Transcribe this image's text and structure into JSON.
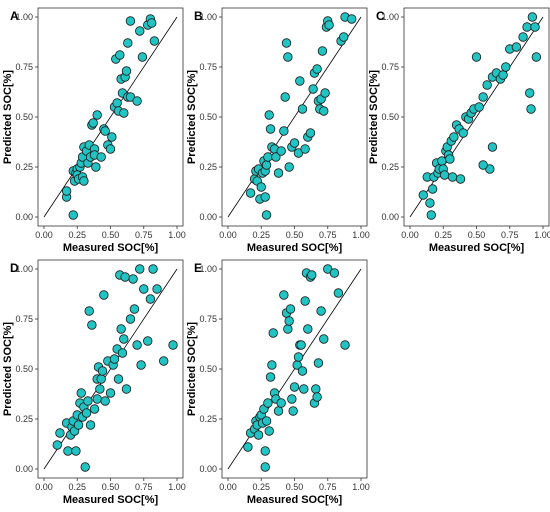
{
  "colors": {
    "point_fill": "#22C3C3",
    "point_stroke": "#1a1a1a",
    "line": "#000000"
  },
  "chart_data": [
    {
      "type": "scatter",
      "panel": "A",
      "xlabel": "Measured SOC[%]",
      "ylabel": "Predicted SOC[%]",
      "xlim": [
        0,
        1
      ],
      "ylim": [
        0,
        1
      ],
      "xticks": [
        "0.00",
        "0.25",
        "0.50",
        "0.75",
        "1.00"
      ],
      "yticks": [
        "0.00",
        "0.25",
        "0.50",
        "0.75",
        "1.00"
      ],
      "reference_line": "y = x",
      "grid": false,
      "points": [
        [
          0.17,
          0.1
        ],
        [
          0.17,
          0.13
        ],
        [
          0.22,
          0.23
        ],
        [
          0.23,
          0.18
        ],
        [
          0.24,
          0.22
        ],
        [
          0.25,
          0.24
        ],
        [
          0.25,
          0.21
        ],
        [
          0.26,
          0.19
        ],
        [
          0.27,
          0.25
        ],
        [
          0.28,
          0.27
        ],
        [
          0.29,
          0.2
        ],
        [
          0.29,
          0.3
        ],
        [
          0.3,
          0.18
        ],
        [
          0.3,
          0.35
        ],
        [
          0.32,
          0.33
        ],
        [
          0.33,
          0.27
        ],
        [
          0.34,
          0.36
        ],
        [
          0.35,
          0.3
        ],
        [
          0.36,
          0.46
        ],
        [
          0.37,
          0.47
        ],
        [
          0.38,
          0.34
        ],
        [
          0.38,
          0.31
        ],
        [
          0.39,
          0.25
        ],
        [
          0.4,
          0.51
        ],
        [
          0.43,
          0.3
        ],
        [
          0.45,
          0.44
        ],
        [
          0.46,
          0.43
        ],
        [
          0.48,
          0.36
        ],
        [
          0.5,
          0.34
        ],
        [
          0.51,
          0.4
        ],
        [
          0.53,
          0.55
        ],
        [
          0.54,
          0.79
        ],
        [
          0.55,
          0.57
        ],
        [
          0.56,
          0.53
        ],
        [
          0.57,
          0.81
        ],
        [
          0.58,
          0.69
        ],
        [
          0.59,
          0.62
        ],
        [
          0.6,
          0.52
        ],
        [
          0.61,
          0.7
        ],
        [
          0.62,
          0.73
        ],
        [
          0.63,
          0.6
        ],
        [
          0.63,
          0.87
        ],
        [
          0.65,
          0.98
        ],
        [
          0.65,
          0.6
        ],
        [
          0.7,
          0.58
        ],
        [
          0.72,
          0.93
        ],
        [
          0.74,
          0.8
        ],
        [
          0.78,
          0.96
        ],
        [
          0.8,
          0.99
        ],
        [
          0.81,
          0.97
        ],
        [
          0.83,
          0.88
        ],
        [
          0.22,
          0.01
        ]
      ]
    },
    {
      "type": "scatter",
      "panel": "B",
      "xlabel": "Measured SOC[%]",
      "ylabel": "Predicted SOC[%]",
      "xlim": [
        0,
        1
      ],
      "ylim": [
        0,
        1
      ],
      "xticks": [
        "0.00",
        "0.25",
        "0.50",
        "0.75",
        "1.00"
      ],
      "yticks": [
        "0.00",
        "0.25",
        "0.50",
        "0.75",
        "1.00"
      ],
      "reference_line": "y = x",
      "grid": false,
      "points": [
        [
          0.17,
          0.12
        ],
        [
          0.2,
          0.19
        ],
        [
          0.21,
          0.23
        ],
        [
          0.22,
          0.18
        ],
        [
          0.23,
          0.24
        ],
        [
          0.24,
          0.09
        ],
        [
          0.25,
          0.15
        ],
        [
          0.26,
          0.22
        ],
        [
          0.27,
          0.28
        ],
        [
          0.28,
          0.23
        ],
        [
          0.28,
          0.1
        ],
        [
          0.29,
          0.26
        ],
        [
          0.29,
          0.01
        ],
        [
          0.3,
          0.3
        ],
        [
          0.31,
          0.51
        ],
        [
          0.32,
          0.44
        ],
        [
          0.33,
          0.35
        ],
        [
          0.35,
          0.34
        ],
        [
          0.36,
          0.3
        ],
        [
          0.38,
          0.22
        ],
        [
          0.4,
          0.33
        ],
        [
          0.42,
          0.43
        ],
        [
          0.43,
          0.6
        ],
        [
          0.44,
          0.87
        ],
        [
          0.45,
          0.8
        ],
        [
          0.46,
          0.25
        ],
        [
          0.48,
          0.35
        ],
        [
          0.5,
          0.37
        ],
        [
          0.53,
          0.32
        ],
        [
          0.54,
          0.68
        ],
        [
          0.56,
          0.54
        ],
        [
          0.58,
          0.34
        ],
        [
          0.6,
          0.4
        ],
        [
          0.62,
          0.42
        ],
        [
          0.64,
          0.64
        ],
        [
          0.65,
          0.72
        ],
        [
          0.67,
          0.74
        ],
        [
          0.68,
          0.58
        ],
        [
          0.69,
          0.54
        ],
        [
          0.7,
          0.59
        ],
        [
          0.71,
          0.83
        ],
        [
          0.72,
          0.53
        ],
        [
          0.73,
          0.62
        ],
        [
          0.74,
          0.95
        ],
        [
          0.75,
          0.98
        ],
        [
          0.76,
          0.96
        ],
        [
          0.85,
          0.88
        ],
        [
          0.87,
          0.9
        ],
        [
          0.88,
          1.0
        ],
        [
          0.93,
          0.99
        ]
      ]
    },
    {
      "type": "scatter",
      "panel": "C",
      "xlabel": "Measured SOC[%]",
      "ylabel": "Predicted SOC[%]",
      "xlim": [
        0,
        1
      ],
      "ylim": [
        0,
        1
      ],
      "xticks": [
        "0.00",
        "0.25",
        "0.50",
        "0.75",
        "1.00"
      ],
      "yticks": [
        "0.00",
        "0.25",
        "0.50",
        "0.75",
        "1.00"
      ],
      "reference_line": "y = x",
      "grid": false,
      "points": [
        [
          0.1,
          0.11
        ],
        [
          0.13,
          0.2
        ],
        [
          0.15,
          0.07
        ],
        [
          0.16,
          0.01
        ],
        [
          0.17,
          0.14
        ],
        [
          0.18,
          0.2
        ],
        [
          0.2,
          0.27
        ],
        [
          0.21,
          0.22
        ],
        [
          0.22,
          0.24
        ],
        [
          0.24,
          0.28
        ],
        [
          0.25,
          0.24
        ],
        [
          0.26,
          0.21
        ],
        [
          0.27,
          0.33
        ],
        [
          0.28,
          0.35
        ],
        [
          0.29,
          0.31
        ],
        [
          0.3,
          0.29
        ],
        [
          0.31,
          0.38
        ],
        [
          0.32,
          0.2
        ],
        [
          0.33,
          0.4
        ],
        [
          0.35,
          0.46
        ],
        [
          0.37,
          0.44
        ],
        [
          0.38,
          0.19
        ],
        [
          0.4,
          0.42
        ],
        [
          0.42,
          0.5
        ],
        [
          0.44,
          0.49
        ],
        [
          0.46,
          0.52
        ],
        [
          0.48,
          0.54
        ],
        [
          0.5,
          0.8
        ],
        [
          0.52,
          0.55
        ],
        [
          0.55,
          0.6
        ],
        [
          0.58,
          0.66
        ],
        [
          0.62,
          0.7
        ],
        [
          0.65,
          0.72
        ],
        [
          0.68,
          0.69
        ],
        [
          0.7,
          0.71
        ],
        [
          0.72,
          0.75
        ],
        [
          0.62,
          0.35
        ],
        [
          0.6,
          0.24
        ],
        [
          0.75,
          0.84
        ],
        [
          0.8,
          0.85
        ],
        [
          0.85,
          0.9
        ],
        [
          0.88,
          0.95
        ],
        [
          0.9,
          0.62
        ],
        [
          0.91,
          0.54
        ],
        [
          0.92,
          1.0
        ],
        [
          0.94,
          0.95
        ],
        [
          0.95,
          0.8
        ],
        [
          0.55,
          0.26
        ]
      ]
    },
    {
      "type": "scatter",
      "panel": "D",
      "xlabel": "Measured SOC[%]",
      "ylabel": "Predicted SOC[%]",
      "xlim": [
        0,
        1
      ],
      "ylim": [
        0,
        1
      ],
      "xticks": [
        "0.00",
        "0.25",
        "0.50",
        "0.75",
        "1.00"
      ],
      "yticks": [
        "0.00",
        "0.25",
        "0.50",
        "0.75",
        "1.00"
      ],
      "reference_line": "y = x",
      "grid": false,
      "points": [
        [
          0.1,
          0.12
        ],
        [
          0.12,
          0.18
        ],
        [
          0.17,
          0.23
        ],
        [
          0.18,
          0.09
        ],
        [
          0.2,
          0.17
        ],
        [
          0.21,
          0.21
        ],
        [
          0.22,
          0.24
        ],
        [
          0.23,
          0.19
        ],
        [
          0.24,
          0.09
        ],
        [
          0.25,
          0.27
        ],
        [
          0.26,
          0.22
        ],
        [
          0.27,
          0.33
        ],
        [
          0.28,
          0.38
        ],
        [
          0.29,
          0.26
        ],
        [
          0.3,
          0.31
        ],
        [
          0.31,
          0.01
        ],
        [
          0.32,
          0.28
        ],
        [
          0.33,
          0.34
        ],
        [
          0.34,
          0.79
        ],
        [
          0.35,
          0.22
        ],
        [
          0.36,
          0.72
        ],
        [
          0.38,
          0.3
        ],
        [
          0.4,
          0.35
        ],
        [
          0.4,
          0.45
        ],
        [
          0.41,
          0.51
        ],
        [
          0.42,
          0.4
        ],
        [
          0.43,
          0.45
        ],
        [
          0.44,
          0.49
        ],
        [
          0.45,
          0.87
        ],
        [
          0.46,
          0.34
        ],
        [
          0.48,
          0.54
        ],
        [
          0.5,
          0.38
        ],
        [
          0.52,
          0.52
        ],
        [
          0.53,
          0.55
        ],
        [
          0.55,
          0.6
        ],
        [
          0.56,
          0.45
        ],
        [
          0.57,
          0.97
        ],
        [
          0.58,
          0.7
        ],
        [
          0.59,
          0.58
        ],
        [
          0.6,
          0.65
        ],
        [
          0.61,
          0.96
        ],
        [
          0.62,
          0.4
        ],
        [
          0.65,
          0.75
        ],
        [
          0.67,
          0.95
        ],
        [
          0.68,
          0.8
        ],
        [
          0.7,
          0.62
        ],
        [
          0.72,
          1.0
        ],
        [
          0.73,
          0.52
        ],
        [
          0.75,
          0.9
        ],
        [
          0.78,
          0.64
        ],
        [
          0.8,
          0.85
        ],
        [
          0.82,
          1.0
        ],
        [
          0.85,
          0.9
        ],
        [
          0.9,
          0.54
        ],
        [
          0.97,
          0.62
        ]
      ]
    },
    {
      "type": "scatter",
      "panel": "E",
      "xlabel": "Measured SOC[%]",
      "ylabel": "Predicted SOC[%]",
      "xlim": [
        0,
        1
      ],
      "ylim": [
        0,
        1
      ],
      "xticks": [
        "0.00",
        "0.25",
        "0.50",
        "0.75",
        "1.00"
      ],
      "yticks": [
        "0.00",
        "0.25",
        "0.50",
        "0.75",
        "1.00"
      ],
      "reference_line": "y = x",
      "grid": false,
      "points": [
        [
          0.15,
          0.11
        ],
        [
          0.17,
          0.18
        ],
        [
          0.2,
          0.2
        ],
        [
          0.21,
          0.24
        ],
        [
          0.22,
          0.22
        ],
        [
          0.23,
          0.17
        ],
        [
          0.24,
          0.26
        ],
        [
          0.25,
          0.27
        ],
        [
          0.26,
          0.23
        ],
        [
          0.27,
          0.3
        ],
        [
          0.28,
          0.09
        ],
        [
          0.28,
          0.01
        ],
        [
          0.29,
          0.24
        ],
        [
          0.3,
          0.33
        ],
        [
          0.31,
          0.19
        ],
        [
          0.32,
          0.46
        ],
        [
          0.33,
          0.52
        ],
        [
          0.34,
          0.68
        ],
        [
          0.35,
          0.38
        ],
        [
          0.36,
          0.35
        ],
        [
          0.38,
          0.29
        ],
        [
          0.4,
          0.33
        ],
        [
          0.42,
          0.87
        ],
        [
          0.44,
          0.78
        ],
        [
          0.45,
          0.7
        ],
        [
          0.46,
          0.74
        ],
        [
          0.47,
          0.8
        ],
        [
          0.48,
          0.35
        ],
        [
          0.49,
          0.29
        ],
        [
          0.5,
          0.41
        ],
        [
          0.52,
          0.52
        ],
        [
          0.53,
          0.56
        ],
        [
          0.54,
          0.62
        ],
        [
          0.55,
          0.62
        ],
        [
          0.56,
          0.49
        ],
        [
          0.57,
          0.4
        ],
        [
          0.58,
          0.84
        ],
        [
          0.59,
          0.98
        ],
        [
          0.6,
          0.7
        ],
        [
          0.62,
          0.96
        ],
        [
          0.63,
          0.97
        ],
        [
          0.65,
          0.33
        ],
        [
          0.66,
          0.4
        ],
        [
          0.67,
          0.36
        ],
        [
          0.68,
          0.53
        ],
        [
          0.7,
          0.79
        ],
        [
          0.72,
          0.65
        ],
        [
          0.75,
          1.0
        ],
        [
          0.8,
          0.98
        ],
        [
          0.83,
          0.88
        ],
        [
          0.88,
          0.62
        ]
      ]
    }
  ]
}
